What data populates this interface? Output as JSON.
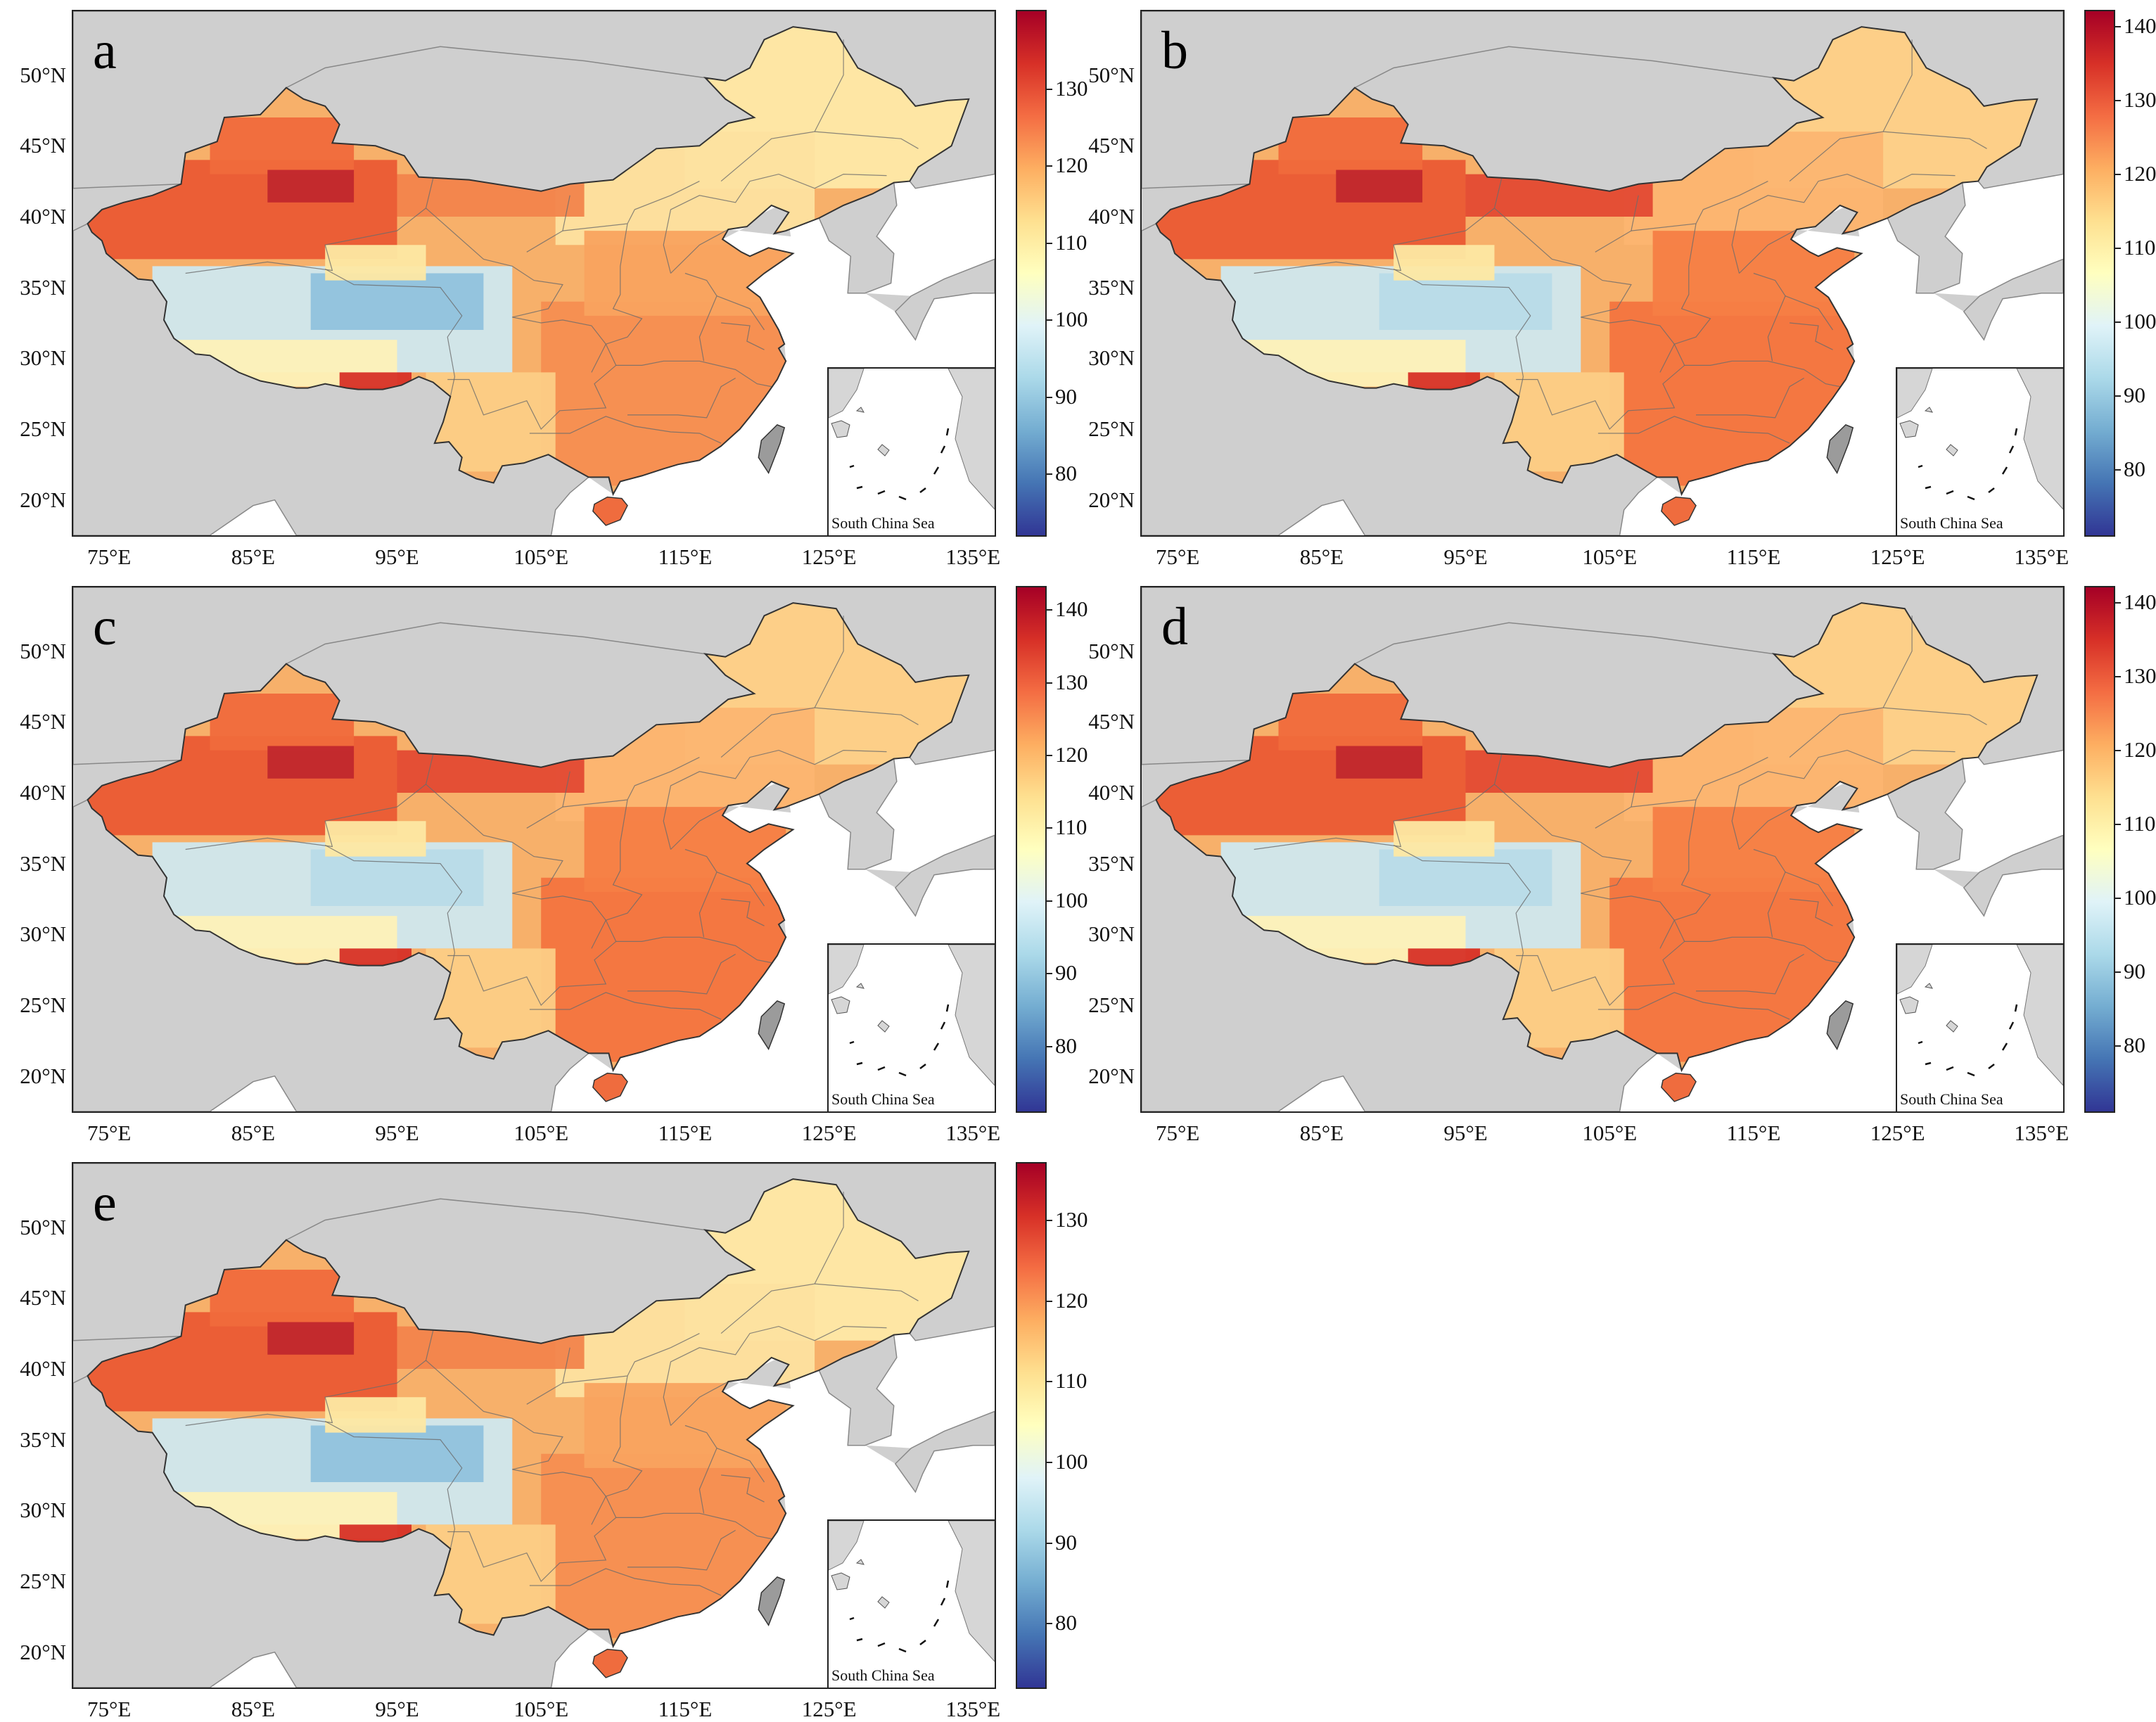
{
  "lat_labels": [
    "50°N",
    "45°N",
    "40°N",
    "35°N",
    "30°N",
    "25°N",
    "20°N"
  ],
  "lat_values": [
    50,
    45,
    40,
    35,
    30,
    25,
    20
  ],
  "lon_labels": [
    "75°E",
    "85°E",
    "95°E",
    "105°E",
    "115°E",
    "125°E",
    "135°E"
  ],
  "lon_values": [
    75,
    85,
    95,
    105,
    115,
    125,
    135
  ],
  "inset_label": "South China Sea",
  "colors": {
    "background": "#cfcfcf",
    "sea": "#ffffff",
    "colormap": [
      "#313695",
      "#4575b4",
      "#74add1",
      "#abd9e9",
      "#e0f3f8",
      "#ffffbf",
      "#fee090",
      "#fdae61",
      "#f46d43",
      "#d73027",
      "#a50026"
    ]
  },
  "panels": [
    {
      "letter": "a",
      "colorbar": {
        "min": 72,
        "max": 140,
        "ticks": [
          80,
          90,
          100,
          110,
          120,
          130
        ],
        "tick_labels": [
          "80",
          "90",
          "100",
          "110",
          "120",
          "130"
        ]
      }
    },
    {
      "letter": "b",
      "colorbar": {
        "min": 71,
        "max": 142,
        "ticks": [
          80,
          90,
          100,
          110,
          120,
          130,
          140
        ],
        "tick_labels": [
          "80",
          "90",
          "100",
          "110",
          "120",
          "130",
          "140"
        ]
      }
    },
    {
      "letter": "c",
      "colorbar": {
        "min": 71,
        "max": 143,
        "ticks": [
          80,
          90,
          100,
          110,
          120,
          130,
          140
        ],
        "tick_labels": [
          "80",
          "90",
          "100",
          "110",
          "120",
          "130",
          "140"
        ]
      }
    },
    {
      "letter": "d",
      "colorbar": {
        "min": 71,
        "max": 142,
        "ticks": [
          80,
          90,
          100,
          110,
          120,
          130,
          140
        ],
        "tick_labels": [
          "80",
          "90",
          "100",
          "110",
          "120",
          "130",
          "140"
        ]
      }
    },
    {
      "letter": "e",
      "colorbar": {
        "min": 72,
        "max": 137,
        "ticks": [
          80,
          90,
          100,
          110,
          120,
          130
        ],
        "tick_labels": [
          "80",
          "90",
          "100",
          "110",
          "120",
          "130"
        ]
      }
    }
  ]
}
